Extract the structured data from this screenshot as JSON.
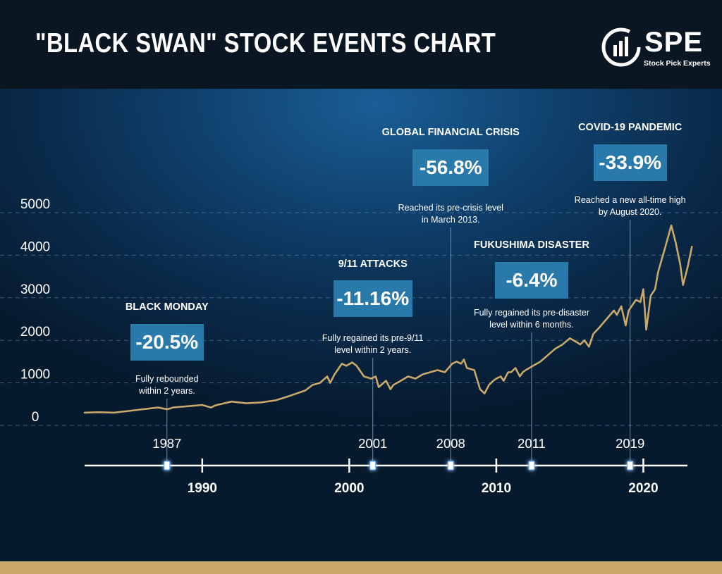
{
  "header": {
    "title": "\"BLACK SWAN\" STOCK EVENTS CHART",
    "logo_text": "SPE",
    "logo_subtitle": "Stock Pick Experts"
  },
  "colors": {
    "header_bg": "#0a1622",
    "background": "#0f3f6b",
    "line": "#c9a86a",
    "label_box": "#2a79ab",
    "timeline_marker": "#4aa8ff",
    "bottom_bar": "#c9a86a"
  },
  "events": [
    {
      "title": "BLACK MONDAY",
      "change": "-20.5%",
      "note_line1": "Fully rebounded",
      "note_line2": "within 2 years.",
      "year_label": "1987"
    },
    {
      "title": "9/11 ATTACKS",
      "change": "-11.16%",
      "note_line1": "Fully regained its pre-9/11",
      "note_line2": "level within 2 years.",
      "year_label": "2001"
    },
    {
      "title": "GLOBAL FINANCIAL CRISIS",
      "change": "-56.8%",
      "note_line1": "Reached its pre-crisis level",
      "note_line2": "in March 2013.",
      "year_label": "2008"
    },
    {
      "title": "FUKUSHIMA DISASTER",
      "change": "-6.4%",
      "note_line1": "Fully regained its pre-disaster",
      "note_line2": "level within 6 months.",
      "year_label": "2011"
    },
    {
      "title": "COVID-19 PANDEMIC",
      "change": "-33.9%",
      "note_line1": "Reached a new all-time high",
      "note_line2": "by August 2020.",
      "year_label": "2019"
    }
  ],
  "chart_data": {
    "type": "line",
    "title": "",
    "xlabel": "",
    "ylabel": "",
    "ylim": [
      0,
      5000
    ],
    "yticks": [
      "0",
      "1000",
      "2000",
      "3000",
      "4000",
      "5000"
    ],
    "xlim": [
      1982,
      2023
    ],
    "xticks": [
      "1990",
      "2000",
      "2010",
      "2020"
    ],
    "grid": true,
    "series": [
      {
        "x": [
          1982.0,
          1983.0,
          1984.0,
          1985.0,
          1986.0,
          1987.0,
          1987.6,
          1987.85,
          1988.0,
          1989.0,
          1990.0,
          1990.6,
          1990.9,
          1991.0,
          1992.0,
          1993.0,
          1994.0,
          1995.0,
          1996.0,
          1997.0,
          1997.5,
          1998.0,
          1998.5,
          1998.7,
          1999.0,
          1999.5,
          1999.8,
          2000.2,
          2000.5,
          2001.0,
          2001.5,
          2001.8,
          2002.0,
          2002.5,
          2002.8,
          2003.0,
          2003.5,
          2004.0,
          2004.5,
          2005.0,
          2005.5,
          2006.0,
          2006.5,
          2007.0,
          2007.3,
          2007.6,
          2007.8,
          2008.0,
          2008.5,
          2008.9,
          2009.2,
          2009.5,
          2009.8,
          2010.0,
          2010.3,
          2010.5,
          2010.8,
          2011.0,
          2011.3,
          2011.6,
          2011.8,
          2012.0,
          2012.5,
          2013.0,
          2013.5,
          2014.0,
          2014.5,
          2015.0,
          2015.5,
          2015.7,
          2016.0,
          2016.3,
          2016.6,
          2017.0,
          2017.5,
          2018.0,
          2018.2,
          2018.5,
          2018.8,
          2019.0,
          2019.5,
          2019.8,
          2020.0,
          2020.2,
          2020.5,
          2020.8,
          2021.0,
          2021.5,
          2021.9,
          2022.2,
          2022.5,
          2022.7,
          2023.0,
          2023.3
        ],
        "y": [
          300,
          310,
          300,
          340,
          380,
          420,
          380,
          400,
          420,
          450,
          480,
          420,
          470,
          480,
          560,
          520,
          540,
          590,
          700,
          820,
          950,
          1000,
          1150,
          1000,
          1200,
          1450,
          1400,
          1480,
          1400,
          1150,
          1100,
          1150,
          900,
          1050,
          850,
          950,
          1050,
          1150,
          1100,
          1200,
          1250,
          1300,
          1250,
          1450,
          1500,
          1450,
          1550,
          1350,
          1300,
          850,
          750,
          950,
          1050,
          1100,
          1150,
          1050,
          1250,
          1250,
          1350,
          1150,
          1250,
          1300,
          1400,
          1500,
          1650,
          1800,
          1900,
          2050,
          1950,
          1900,
          2000,
          1850,
          2150,
          2300,
          2500,
          2700,
          2600,
          2800,
          2350,
          2700,
          2950,
          2900,
          3200,
          2250,
          3050,
          3200,
          3600,
          4200,
          4700,
          4300,
          3800,
          3300,
          3700,
          4200
        ]
      }
    ]
  }
}
